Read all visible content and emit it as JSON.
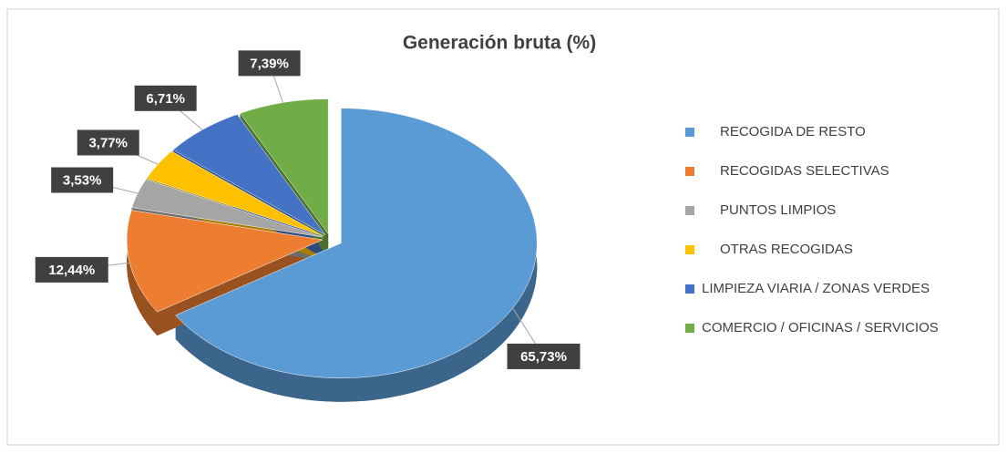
{
  "chart_data": {
    "type": "pie",
    "title": "Generación bruta (%)",
    "categories": [
      "RECOGIDA DE RESTO",
      "RECOGIDAS SELECTIVAS",
      "PUNTOS LIMPIOS",
      "OTRAS RECOGIDAS",
      "LIMPIEZA VIARIA / ZONAS VERDES",
      "COMERCIO / OFICINAS / SERVICIOS"
    ],
    "values": [
      65.73,
      12.44,
      3.53,
      3.77,
      6.71,
      7.39
    ],
    "value_labels": [
      "65,73%",
      "12,44%",
      "3,53%",
      "3,77%",
      "6,71%",
      "7,39%"
    ],
    "colors": [
      "#5b9bd5",
      "#ed7d31",
      "#a5a5a5",
      "#ffc000",
      "#4472c4",
      "#70ad47"
    ],
    "legend": "right"
  }
}
